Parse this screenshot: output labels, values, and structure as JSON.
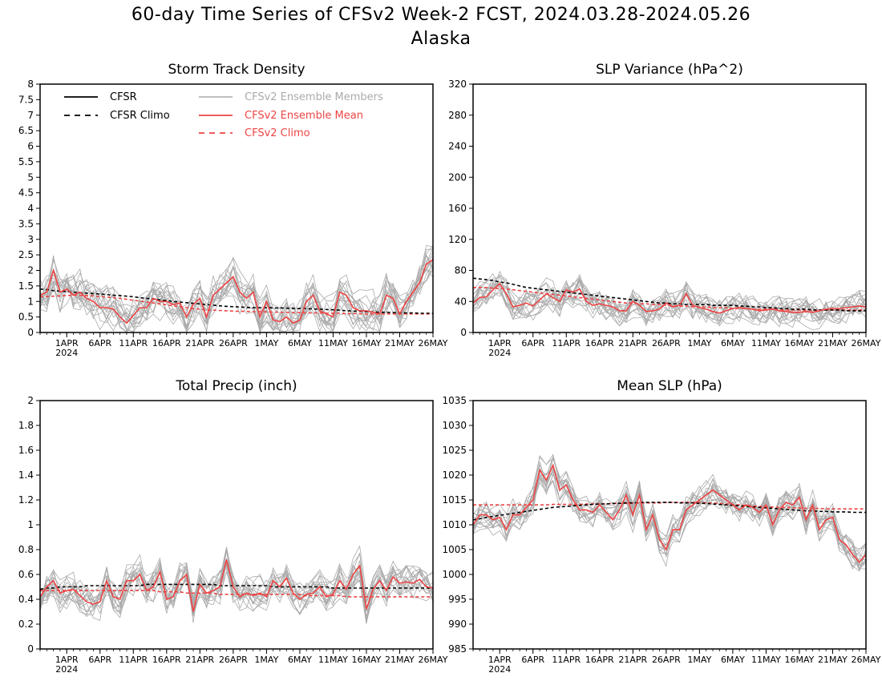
{
  "header": {
    "title": "60-day Time Series of CFSv2 Week-2 FCST, 2024.03.28-2024.05.26",
    "subtitle": "Alaska"
  },
  "legend": {
    "items": [
      {
        "label": "CFSR",
        "color": "#000000",
        "style": "solid"
      },
      {
        "label": "CFSR Climo",
        "color": "#000000",
        "style": "dashed"
      },
      {
        "label": "CFSv2 Ensemble Members",
        "color": "#aaaaaa",
        "style": "solid"
      },
      {
        "label": "CFSv2 Ensemble Mean",
        "color": "#ee4444",
        "style": "solid"
      },
      {
        "label": "CFSv2 Climo",
        "color": "#ee4444",
        "style": "dashed"
      }
    ]
  },
  "colors": {
    "cfsr": "#000000",
    "members": "#aaaaaa",
    "mean": "#ee4444"
  },
  "chart_data": [
    {
      "type": "line",
      "title": "Storm Track Density",
      "xticks": [
        "1APR",
        "6APR",
        "11APR",
        "16APR",
        "21APR",
        "26APR",
        "1MAY",
        "6MAY",
        "11MAY",
        "16MAY",
        "21MAY",
        "26MAY"
      ],
      "xtick_days": [
        4,
        9,
        14,
        19,
        24,
        29,
        34,
        39,
        44,
        49,
        54,
        59
      ],
      "year_label": "2024",
      "xlim": [
        0,
        59
      ],
      "ylim": [
        0,
        8
      ],
      "yticks": [
        0,
        0.5,
        1,
        1.5,
        2,
        2.5,
        3,
        3.5,
        4,
        4.5,
        5,
        5.5,
        6,
        6.5,
        7,
        7.5,
        8
      ],
      "ytick_labels": [
        "0",
        "0.5",
        "1",
        "1.5",
        "2",
        "2.5",
        "3",
        "3.5",
        "4",
        "4.5",
        "5",
        "5.5",
        "6",
        "6.5",
        "7",
        "7.5",
        "8"
      ],
      "legend": "top-left",
      "series": [
        {
          "name": "CFSR Climo",
          "style": "dashed",
          "color": "#000000",
          "y": [
            1.4,
            1.38,
            1.35,
            1.33,
            1.32,
            1.3,
            1.28,
            1.27,
            1.25,
            1.24,
            1.22,
            1.2,
            1.19,
            1.17,
            1.15,
            1.12,
            1.1,
            1.08,
            1.05,
            1.03,
            1.0,
            0.98,
            0.96,
            0.94,
            0.92,
            0.9,
            0.88,
            0.86,
            0.84,
            0.83,
            0.82,
            0.81,
            0.8,
            0.8,
            0.8,
            0.79,
            0.79,
            0.78,
            0.78,
            0.77,
            0.77,
            0.76,
            0.75,
            0.74,
            0.73,
            0.72,
            0.7,
            0.69,
            0.68,
            0.67,
            0.66,
            0.65,
            0.65,
            0.64,
            0.64,
            0.63,
            0.63,
            0.62,
            0.62,
            0.62
          ]
        },
        {
          "name": "CFSv2 Climo",
          "style": "dashed",
          "color": "#ee4444",
          "y": [
            1.15,
            1.16,
            1.17,
            1.18,
            1.19,
            1.2,
            1.2,
            1.19,
            1.18,
            1.16,
            1.14,
            1.12,
            1.1,
            1.07,
            1.04,
            1.01,
            0.98,
            0.95,
            0.92,
            0.89,
            0.86,
            0.83,
            0.8,
            0.77,
            0.75,
            0.73,
            0.72,
            0.71,
            0.7,
            0.69,
            0.68,
            0.68,
            0.67,
            0.67,
            0.66,
            0.66,
            0.65,
            0.65,
            0.64,
            0.64,
            0.63,
            0.63,
            0.63,
            0.62,
            0.62,
            0.62,
            0.61,
            0.61,
            0.61,
            0.6,
            0.6,
            0.6,
            0.6,
            0.6,
            0.6,
            0.6,
            0.6,
            0.6,
            0.6,
            0.6
          ]
        },
        {
          "name": "CFSv2 Ensemble Mean",
          "style": "solid",
          "color": "#ee4444",
          "y": [
            1.2,
            1.3,
            2.0,
            1.3,
            1.4,
            1.2,
            1.3,
            1.1,
            1.0,
            0.8,
            0.8,
            0.75,
            0.5,
            0.3,
            0.55,
            0.8,
            0.8,
            1.1,
            1.0,
            1.0,
            0.9,
            0.95,
            0.5,
            0.9,
            1.1,
            0.5,
            1.2,
            1.4,
            1.6,
            1.8,
            1.3,
            1.1,
            1.3,
            0.5,
            1.0,
            0.4,
            0.35,
            0.5,
            0.3,
            0.4,
            1.0,
            1.2,
            0.7,
            0.6,
            0.5,
            1.3,
            1.2,
            0.8,
            0.7,
            0.7,
            0.65,
            0.6,
            1.2,
            1.1,
            0.6,
            1.0,
            1.3,
            1.6,
            2.2,
            2.35
          ]
        }
      ]
    },
    {
      "type": "line",
      "title": "SLP Variance (hPa^2)",
      "xticks": [
        "1APR",
        "6APR",
        "11APR",
        "16APR",
        "21APR",
        "26APR",
        "1MAY",
        "6MAY",
        "11MAY",
        "16MAY",
        "21MAY",
        "26MAY"
      ],
      "xtick_days": [
        4,
        9,
        14,
        19,
        24,
        29,
        34,
        39,
        44,
        49,
        54,
        59
      ],
      "year_label": "2024",
      "xlim": [
        0,
        59
      ],
      "ylim": [
        0,
        320
      ],
      "yticks": [
        0,
        40,
        80,
        120,
        160,
        200,
        240,
        280,
        320
      ],
      "ytick_labels": [
        "0",
        "40",
        "80",
        "120",
        "160",
        "200",
        "240",
        "280",
        "320"
      ],
      "series": [
        {
          "name": "CFSR Climo",
          "style": "dashed",
          "color": "#000000",
          "y": [
            70,
            69,
            68,
            67,
            65,
            64,
            62,
            60,
            58,
            57,
            56,
            55,
            54,
            53,
            52,
            51,
            50,
            49,
            48,
            47,
            46,
            45,
            44,
            43,
            42,
            41,
            40,
            39,
            38,
            38,
            37,
            37,
            36,
            36,
            36,
            36,
            35,
            35,
            35,
            35,
            34,
            34,
            33,
            33,
            32,
            32,
            31,
            31,
            30,
            30,
            30,
            29,
            29,
            29,
            29,
            29,
            28,
            28,
            28,
            28
          ]
        },
        {
          "name": "CFSv2 Climo",
          "style": "dashed",
          "color": "#ee4444",
          "y": [
            58,
            58,
            58,
            57,
            57,
            56,
            55,
            54,
            53,
            52,
            51,
            50,
            49,
            48,
            47,
            46,
            45,
            44,
            43,
            42,
            41,
            40,
            39,
            38,
            38,
            37,
            37,
            36,
            36,
            35,
            35,
            34,
            34,
            33,
            33,
            33,
            32,
            32,
            32,
            31,
            31,
            31,
            30,
            30,
            30,
            30,
            29,
            29,
            29,
            29,
            29,
            29,
            29,
            29,
            29,
            29,
            29,
            29,
            29,
            29
          ]
        },
        {
          "name": "CFSv2 Ensemble Mean",
          "style": "solid",
          "color": "#ee4444",
          "y": [
            38,
            45,
            46,
            55,
            63,
            50,
            33,
            35,
            38,
            34,
            42,
            50,
            45,
            40,
            55,
            52,
            56,
            40,
            35,
            37,
            35,
            33,
            28,
            28,
            40,
            35,
            27,
            28,
            30,
            38,
            33,
            35,
            50,
            35,
            32,
            30,
            27,
            25,
            28,
            31,
            32,
            31,
            30,
            28,
            29,
            30,
            28,
            27,
            26,
            26,
            27,
            26,
            28,
            30,
            31,
            31,
            32,
            33,
            34,
            33
          ]
        }
      ]
    },
    {
      "type": "line",
      "title": "Total Precip (inch)",
      "xticks": [
        "1APR",
        "6APR",
        "11APR",
        "16APR",
        "21APR",
        "26APR",
        "1MAY",
        "6MAY",
        "11MAY",
        "16MAY",
        "21MAY",
        "26MAY"
      ],
      "xtick_days": [
        4,
        9,
        14,
        19,
        24,
        29,
        34,
        39,
        44,
        49,
        54,
        59
      ],
      "year_label": "2024",
      "xlim": [
        0,
        59
      ],
      "ylim": [
        0,
        2
      ],
      "yticks": [
        0,
        0.2,
        0.4,
        0.6,
        0.8,
        1,
        1.2,
        1.4,
        1.6,
        1.8,
        2
      ],
      "ytick_labels": [
        "0",
        "0.2",
        "0.4",
        "0.6",
        "0.8",
        "1",
        "1.2",
        "1.4",
        "1.6",
        "1.8",
        "2"
      ],
      "series": [
        {
          "name": "CFSR Climo",
          "style": "dashed",
          "color": "#000000",
          "y": [
            0.48,
            0.49,
            0.49,
            0.5,
            0.5,
            0.5,
            0.5,
            0.51,
            0.51,
            0.51,
            0.51,
            0.51,
            0.51,
            0.51,
            0.51,
            0.51,
            0.52,
            0.52,
            0.52,
            0.52,
            0.52,
            0.52,
            0.52,
            0.52,
            0.52,
            0.52,
            0.52,
            0.51,
            0.51,
            0.51,
            0.51,
            0.51,
            0.51,
            0.51,
            0.51,
            0.5,
            0.5,
            0.5,
            0.5,
            0.5,
            0.5,
            0.5,
            0.5,
            0.5,
            0.49,
            0.49,
            0.49,
            0.49,
            0.49,
            0.49,
            0.49,
            0.49,
            0.49,
            0.49,
            0.49,
            0.49,
            0.49,
            0.49,
            0.49,
            0.49
          ]
        },
        {
          "name": "CFSv2 Climo",
          "style": "dashed",
          "color": "#ee4444",
          "y": [
            0.47,
            0.47,
            0.47,
            0.47,
            0.47,
            0.47,
            0.47,
            0.47,
            0.47,
            0.47,
            0.47,
            0.47,
            0.47,
            0.47,
            0.47,
            0.47,
            0.47,
            0.47,
            0.46,
            0.46,
            0.46,
            0.46,
            0.45,
            0.45,
            0.45,
            0.45,
            0.45,
            0.44,
            0.44,
            0.44,
            0.44,
            0.44,
            0.44,
            0.44,
            0.44,
            0.44,
            0.44,
            0.44,
            0.44,
            0.44,
            0.43,
            0.43,
            0.43,
            0.43,
            0.43,
            0.43,
            0.42,
            0.42,
            0.42,
            0.42,
            0.42,
            0.42,
            0.42,
            0.42,
            0.42,
            0.42,
            0.42,
            0.42,
            0.42,
            0.42
          ]
        },
        {
          "name": "CFSv2 Ensemble Mean",
          "style": "solid",
          "color": "#ee4444",
          "y": [
            0.42,
            0.5,
            0.55,
            0.45,
            0.47,
            0.48,
            0.43,
            0.38,
            0.36,
            0.38,
            0.55,
            0.42,
            0.4,
            0.55,
            0.55,
            0.6,
            0.47,
            0.5,
            0.62,
            0.4,
            0.42,
            0.55,
            0.6,
            0.3,
            0.52,
            0.45,
            0.47,
            0.5,
            0.72,
            0.5,
            0.42,
            0.45,
            0.43,
            0.45,
            0.42,
            0.55,
            0.5,
            0.57,
            0.45,
            0.4,
            0.44,
            0.45,
            0.5,
            0.42,
            0.44,
            0.55,
            0.48,
            0.6,
            0.67,
            0.32,
            0.48,
            0.55,
            0.47,
            0.58,
            0.53,
            0.54,
            0.53,
            0.56,
            0.5,
            0.49
          ]
        }
      ]
    },
    {
      "type": "line",
      "title": "Mean SLP (hPa)",
      "xticks": [
        "1APR",
        "6APR",
        "11APR",
        "16APR",
        "21APR",
        "26APR",
        "1MAY",
        "6MAY",
        "11MAY",
        "16MAY",
        "21MAY",
        "26MAY"
      ],
      "xtick_days": [
        4,
        9,
        14,
        19,
        24,
        29,
        34,
        39,
        44,
        49,
        54,
        59
      ],
      "year_label": "2024",
      "xlim": [
        0,
        59
      ],
      "ylim": [
        985,
        1035
      ],
      "yticks": [
        985,
        990,
        995,
        1000,
        1005,
        1010,
        1015,
        1020,
        1025,
        1030,
        1035
      ],
      "ytick_labels": [
        "985",
        "990",
        "995",
        "1000",
        "1005",
        "1010",
        "1015",
        "1020",
        "1025",
        "1030",
        "1035"
      ],
      "series": [
        {
          "name": "CFSR Climo",
          "style": "dashed",
          "color": "#000000",
          "y": [
            1011.0,
            1011.2,
            1011.5,
            1011.7,
            1011.9,
            1012.1,
            1012.3,
            1012.5,
            1012.7,
            1012.9,
            1013.1,
            1013.3,
            1013.5,
            1013.6,
            1013.7,
            1013.8,
            1013.9,
            1014.0,
            1014.1,
            1014.2,
            1014.2,
            1014.3,
            1014.3,
            1014.4,
            1014.4,
            1014.5,
            1014.5,
            1014.5,
            1014.5,
            1014.5,
            1014.5,
            1014.4,
            1014.4,
            1014.4,
            1014.3,
            1014.3,
            1014.2,
            1014.1,
            1014.0,
            1013.9,
            1013.8,
            1013.7,
            1013.6,
            1013.5,
            1013.4,
            1013.3,
            1013.2,
            1013.1,
            1013.0,
            1012.9,
            1012.8,
            1012.8,
            1012.7,
            1012.7,
            1012.6,
            1012.6,
            1012.6,
            1012.5,
            1012.5,
            1012.5
          ]
        },
        {
          "name": "CFSv2 Climo",
          "style": "dashed",
          "color": "#ee4444",
          "y": [
            1014.0,
            1014.0,
            1014.0,
            1014.0,
            1014.0,
            1014.0,
            1014.0,
            1014.0,
            1014.0,
            1014.0,
            1014.0,
            1014.0,
            1014.1,
            1014.1,
            1014.1,
            1014.1,
            1014.1,
            1014.2,
            1014.2,
            1014.2,
            1014.2,
            1014.3,
            1014.3,
            1014.3,
            1014.3,
            1014.4,
            1014.4,
            1014.4,
            1014.4,
            1014.5,
            1014.5,
            1014.5,
            1014.5,
            1014.5,
            1014.5,
            1014.4,
            1014.4,
            1014.3,
            1014.2,
            1014.1,
            1014.0,
            1013.9,
            1013.8,
            1013.7,
            1013.6,
            1013.6,
            1013.5,
            1013.5,
            1013.4,
            1013.4,
            1013.3,
            1013.3,
            1013.3,
            1013.2,
            1013.2,
            1013.2,
            1013.2,
            1013.2,
            1013.2,
            1013.2
          ]
        },
        {
          "name": "CFSv2 Ensemble Mean",
          "style": "solid",
          "color": "#ee4444",
          "y": [
            1010.0,
            1012.0,
            1012.0,
            1011.0,
            1011.5,
            1009.0,
            1012.0,
            1012.0,
            1013.5,
            1015.0,
            1021.0,
            1019.0,
            1022.0,
            1017.0,
            1018.0,
            1015.0,
            1013.0,
            1013.0,
            1012.5,
            1014.0,
            1012.5,
            1011.0,
            1013.0,
            1016.0,
            1012.0,
            1016.0,
            1009.0,
            1012.0,
            1007.0,
            1005.0,
            1009.0,
            1009.0,
            1013.0,
            1014.0,
            1015.0,
            1016.0,
            1017.0,
            1016.0,
            1015.0,
            1014.0,
            1013.0,
            1014.0,
            1013.5,
            1012.5,
            1014.0,
            1010.0,
            1013.0,
            1014.5,
            1014.0,
            1015.5,
            1011.0,
            1014.0,
            1009.0,
            1011.0,
            1011.5,
            1007.0,
            1006.0,
            1004.0,
            1002.5,
            1004.0
          ]
        }
      ]
    }
  ]
}
